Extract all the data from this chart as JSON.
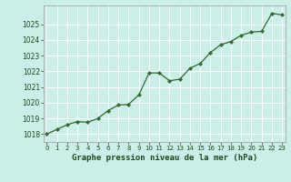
{
  "x": [
    0,
    1,
    2,
    3,
    4,
    5,
    6,
    7,
    8,
    9,
    10,
    11,
    12,
    13,
    14,
    15,
    16,
    17,
    18,
    19,
    20,
    21,
    22,
    23
  ],
  "y": [
    1018.0,
    1018.3,
    1018.6,
    1018.8,
    1018.75,
    1019.0,
    1019.5,
    1019.85,
    1019.9,
    1020.5,
    1021.9,
    1021.9,
    1021.4,
    1021.5,
    1022.2,
    1022.5,
    1023.2,
    1023.7,
    1023.9,
    1024.3,
    1024.5,
    1024.55,
    1025.7,
    1025.6
  ],
  "title": "Graphe pression niveau de la mer (hPa)",
  "bg_color": "#cceee8",
  "line_color": "#2d6a2d",
  "marker_color": "#2d6a2d",
  "grid_color": "#ffffff",
  "axis_label_color": "#1a4a1a",
  "ylim_min": 1017.5,
  "ylim_max": 1026.2,
  "yticks": [
    1018,
    1019,
    1020,
    1021,
    1022,
    1023,
    1024,
    1025
  ],
  "title_fontsize": 6.5,
  "tick_fontsize": 5.5
}
